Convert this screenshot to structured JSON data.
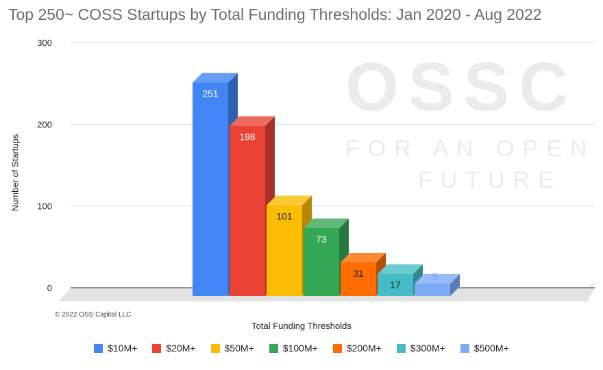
{
  "chart_data": {
    "type": "bar",
    "title": "Top 250~ COSS Startups by Total Funding Thresholds: Jan 2020 - Aug 2022",
    "xlabel": "Total Funding Thresholds",
    "ylabel": "Number of Startups",
    "categories": [
      "$10M+",
      "$20M+",
      "$50M+",
      "$100M+",
      "$200M+",
      "$300M+",
      "$500M+"
    ],
    "values": [
      251,
      198,
      101,
      73,
      31,
      17,
      5
    ],
    "colors": [
      "#4285f4",
      "#ea4335",
      "#fbbc04",
      "#34a853",
      "#ff6d01",
      "#46bdc6",
      "#7baaf7"
    ],
    "ylim": [
      0,
      300
    ],
    "yticks": [
      0,
      100,
      200,
      300
    ],
    "grid": true,
    "legend_position": "bottom",
    "style": "3d"
  },
  "watermark": {
    "logo": "OSSC",
    "line1": "FOR AN OPEN",
    "line2": "FUTURE"
  },
  "copyright": "© 2022 OSS Capital LLC"
}
